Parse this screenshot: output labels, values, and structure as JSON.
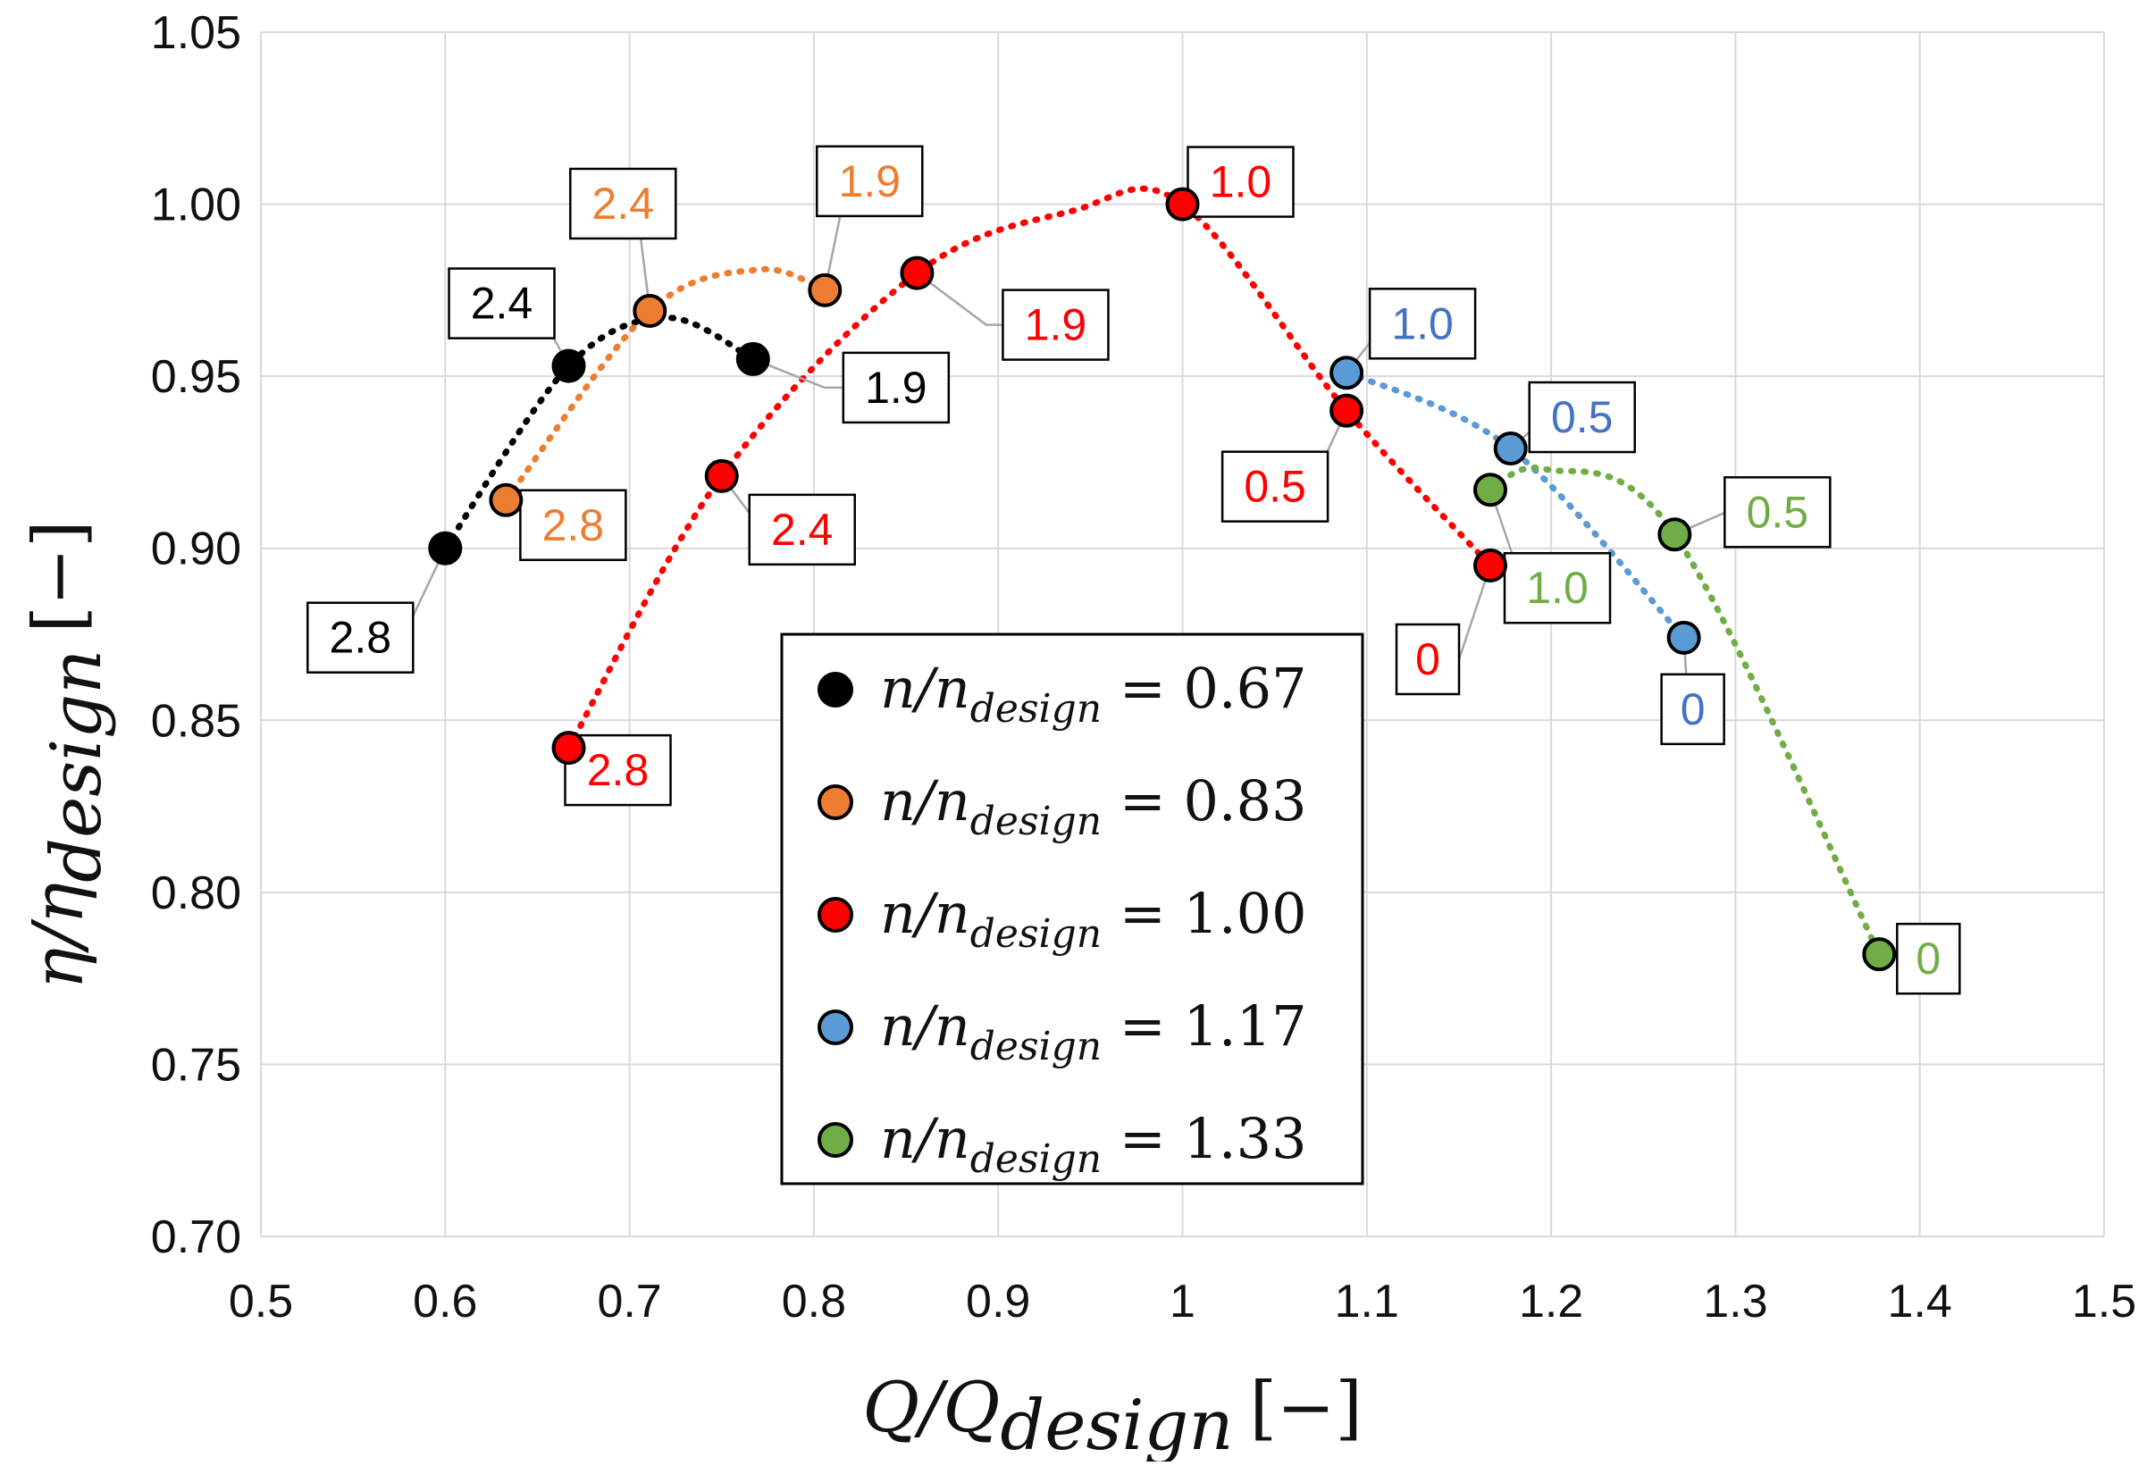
{
  "chart_data": {
    "type": "scatter",
    "xlabel": "Q/Q_design [−]",
    "ylabel": "η/η_design [−]",
    "xlabel_parts": {
      "main": "Q/Q",
      "sub": "design",
      "unit": "[−]"
    },
    "ylabel_parts": {
      "main": "η/η",
      "sub": "design",
      "unit": "[−]"
    },
    "xlim": [
      0.5,
      1.5
    ],
    "ylim": [
      0.7,
      1.05
    ],
    "x_ticks": [
      "0.5",
      "0.6",
      "0.7",
      "0.8",
      "0.9",
      "1",
      "1.1",
      "1.2",
      "1.3",
      "1.4",
      "1.5"
    ],
    "y_ticks": [
      "0.70",
      "0.75",
      "0.80",
      "0.85",
      "0.90",
      "0.95",
      "1.00",
      "1.05"
    ],
    "grid": true,
    "legend_position": "center-bottom",
    "series": [
      {
        "name": "n/n_design = 0.67",
        "legend_value": "0.67",
        "color": "#000000",
        "label_color": "#000000",
        "curve_peak": [
          0.72,
          0.967
        ],
        "points": [
          {
            "x": 0.6,
            "y": 0.9,
            "label": "2.8"
          },
          {
            "x": 0.667,
            "y": 0.953,
            "label": "2.4"
          },
          {
            "x": 0.767,
            "y": 0.955,
            "label": "1.9"
          }
        ]
      },
      {
        "name": "n/n_design = 0.83",
        "legend_value": "0.83",
        "color": "#ED7D31",
        "label_color": "#ED7D31",
        "curve_peak": [
          0.77,
          0.981
        ],
        "points": [
          {
            "x": 0.633,
            "y": 0.914,
            "label": "2.8"
          },
          {
            "x": 0.711,
            "y": 0.969,
            "label": "2.4"
          },
          {
            "x": 0.806,
            "y": 0.975,
            "label": "1.9"
          }
        ]
      },
      {
        "name": "n/n_design = 1.00",
        "legend_value": "1.00",
        "color": "#FF0000",
        "label_color": "#FF0000",
        "curve_peak": [
          0.94,
          0.998
        ],
        "points": [
          {
            "x": 0.667,
            "y": 0.842,
            "label": "2.8"
          },
          {
            "x": 0.75,
            "y": 0.921,
            "label": "2.4"
          },
          {
            "x": 0.856,
            "y": 0.98,
            "label": "1.9"
          },
          {
            "x": 1.0,
            "y": 1.0,
            "label": "1.0"
          },
          {
            "x": 1.089,
            "y": 0.94,
            "label": "0.5"
          },
          {
            "x": 1.167,
            "y": 0.895,
            "label": "0"
          }
        ]
      },
      {
        "name": "n/n_design = 1.17",
        "legend_value": "1.17",
        "color": "#5B9BD5",
        "label_color": "#4472C4",
        "curve_peak": [
          1.09,
          0.951
        ],
        "points": [
          {
            "x": 1.089,
            "y": 0.951,
            "label": "1.0"
          },
          {
            "x": 1.178,
            "y": 0.929,
            "label": "0.5"
          },
          {
            "x": 1.272,
            "y": 0.874,
            "label": "0"
          }
        ]
      },
      {
        "name": "n/n_design = 1.33",
        "legend_value": "1.33",
        "color": "#70AD47",
        "label_color": "#70AD47",
        "curve_peak": [
          1.197,
          0.923
        ],
        "points": [
          {
            "x": 1.167,
            "y": 0.917,
            "label": "1.0"
          },
          {
            "x": 1.267,
            "y": 0.904,
            "label": "0.5"
          },
          {
            "x": 1.378,
            "y": 0.782,
            "label": "0"
          }
        ]
      }
    ]
  }
}
